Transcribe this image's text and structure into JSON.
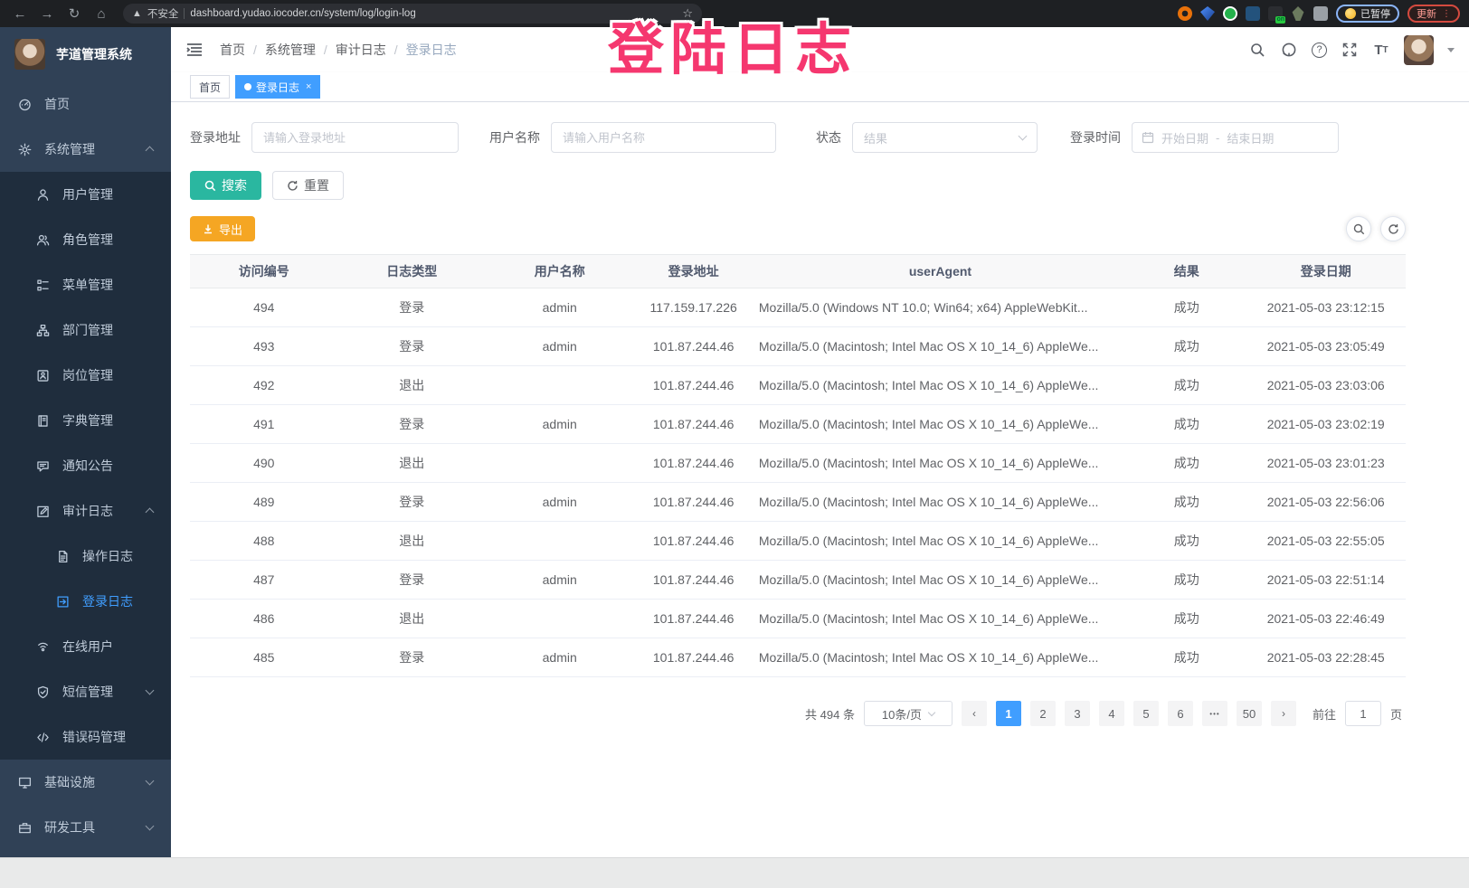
{
  "annotation": {
    "text": "登陆日志",
    "color": "#f5376f"
  },
  "browser": {
    "insecure_label": "不安全",
    "url": "dashboard.yudao.iocoder.cn/system/log/login-log",
    "on_badge": "on",
    "paused_label": "已暂停",
    "update_label": "更新"
  },
  "app": {
    "title": "芋道管理系统"
  },
  "sidebar": {
    "items": [
      {
        "key": "home",
        "label": "首页",
        "icon": "home-icon",
        "level": 1
      },
      {
        "key": "system-management",
        "label": "系统管理",
        "icon": "gear-icon",
        "level": 1,
        "chevron": "up"
      },
      {
        "key": "user-management",
        "label": "用户管理",
        "icon": "user-icon",
        "level": 2
      },
      {
        "key": "role-management",
        "label": "角色管理",
        "icon": "users-icon",
        "level": 2
      },
      {
        "key": "menu-management",
        "label": "菜单管理",
        "icon": "menu-icon",
        "level": 2
      },
      {
        "key": "dept-management",
        "label": "部门管理",
        "icon": "tree-icon",
        "level": 2
      },
      {
        "key": "post-management",
        "label": "岗位管理",
        "icon": "badge-icon",
        "level": 2
      },
      {
        "key": "dict-management",
        "label": "字典管理",
        "icon": "book-icon",
        "level": 2
      },
      {
        "key": "notice",
        "label": "通知公告",
        "icon": "megaphone-icon",
        "level": 2
      },
      {
        "key": "audit-log",
        "label": "审计日志",
        "icon": "edit-icon",
        "level": 2,
        "chevron": "up"
      },
      {
        "key": "operate-log",
        "label": "操作日志",
        "icon": "doc-icon",
        "level": 3
      },
      {
        "key": "login-log",
        "label": "登录日志",
        "icon": "login-log-icon",
        "level": 3,
        "active": true
      },
      {
        "key": "online-user",
        "label": "在线用户",
        "icon": "online-icon",
        "level": 2
      },
      {
        "key": "sms-management",
        "label": "短信管理",
        "icon": "shield-icon",
        "level": 2,
        "chevron": "down"
      },
      {
        "key": "error-code",
        "label": "错误码管理",
        "icon": "code-icon",
        "level": 2
      },
      {
        "key": "infrastructure",
        "label": "基础设施",
        "icon": "infra-icon",
        "level": 1,
        "chevron": "down"
      },
      {
        "key": "dev-tools",
        "label": "研发工具",
        "icon": "tools-icon",
        "level": 1,
        "chevron": "down"
      }
    ]
  },
  "breadcrumb": {
    "items": [
      "首页",
      "系统管理",
      "审计日志",
      "登录日志"
    ]
  },
  "tags": [
    {
      "key": "home",
      "label": "首页",
      "active": false,
      "closable": false
    },
    {
      "key": "login-log",
      "label": "登录日志",
      "active": true,
      "closable": true
    }
  ],
  "filters": {
    "address": {
      "label": "登录地址",
      "placeholder": "请输入登录地址"
    },
    "username": {
      "label": "用户名称",
      "placeholder": "请输入用户名称"
    },
    "status": {
      "label": "状态",
      "placeholder": "结果"
    },
    "time": {
      "label": "登录时间",
      "start_placeholder": "开始日期",
      "separator": "-",
      "end_placeholder": "结束日期"
    },
    "search_label": "搜索",
    "reset_label": "重置"
  },
  "toolbar": {
    "export_label": "导出"
  },
  "table": {
    "headers": [
      "访问编号",
      "日志类型",
      "用户名称",
      "登录地址",
      "userAgent",
      "结果",
      "登录日期"
    ],
    "rows": [
      [
        "494",
        "登录",
        "admin",
        "117.159.17.226",
        "Mozilla/5.0 (Windows NT 10.0; Win64; x64) AppleWebKit...",
        "成功",
        "2021-05-03 23:12:15"
      ],
      [
        "493",
        "登录",
        "admin",
        "101.87.244.46",
        "Mozilla/5.0 (Macintosh; Intel Mac OS X 10_14_6) AppleWe...",
        "成功",
        "2021-05-03 23:05:49"
      ],
      [
        "492",
        "退出",
        "",
        "101.87.244.46",
        "Mozilla/5.0 (Macintosh; Intel Mac OS X 10_14_6) AppleWe...",
        "成功",
        "2021-05-03 23:03:06"
      ],
      [
        "491",
        "登录",
        "admin",
        "101.87.244.46",
        "Mozilla/5.0 (Macintosh; Intel Mac OS X 10_14_6) AppleWe...",
        "成功",
        "2021-05-03 23:02:19"
      ],
      [
        "490",
        "退出",
        "",
        "101.87.244.46",
        "Mozilla/5.0 (Macintosh; Intel Mac OS X 10_14_6) AppleWe...",
        "成功",
        "2021-05-03 23:01:23"
      ],
      [
        "489",
        "登录",
        "admin",
        "101.87.244.46",
        "Mozilla/5.0 (Macintosh; Intel Mac OS X 10_14_6) AppleWe...",
        "成功",
        "2021-05-03 22:56:06"
      ],
      [
        "488",
        "退出",
        "",
        "101.87.244.46",
        "Mozilla/5.0 (Macintosh; Intel Mac OS X 10_14_6) AppleWe...",
        "成功",
        "2021-05-03 22:55:05"
      ],
      [
        "487",
        "登录",
        "admin",
        "101.87.244.46",
        "Mozilla/5.0 (Macintosh; Intel Mac OS X 10_14_6) AppleWe...",
        "成功",
        "2021-05-03 22:51:14"
      ],
      [
        "486",
        "退出",
        "",
        "101.87.244.46",
        "Mozilla/5.0 (Macintosh; Intel Mac OS X 10_14_6) AppleWe...",
        "成功",
        "2021-05-03 22:46:49"
      ],
      [
        "485",
        "登录",
        "admin",
        "101.87.244.46",
        "Mozilla/5.0 (Macintosh; Intel Mac OS X 10_14_6) AppleWe...",
        "成功",
        "2021-05-03 22:28:45"
      ]
    ]
  },
  "pagination": {
    "total_label": "共 494 条",
    "page_size": "10条/页",
    "pages": [
      "1",
      "2",
      "3",
      "4",
      "5",
      "6",
      "...",
      "50"
    ],
    "active_page": "1",
    "goto_label": "前往",
    "goto_value": "1",
    "goto_suffix": "页"
  },
  "colors": {
    "accent": "#409EFF",
    "search_button": "#2ab7a0",
    "export_button": "#f5a623",
    "annotation": "#f5376f",
    "sidebar": "#304156",
    "submenu": "#1f2d3d"
  }
}
